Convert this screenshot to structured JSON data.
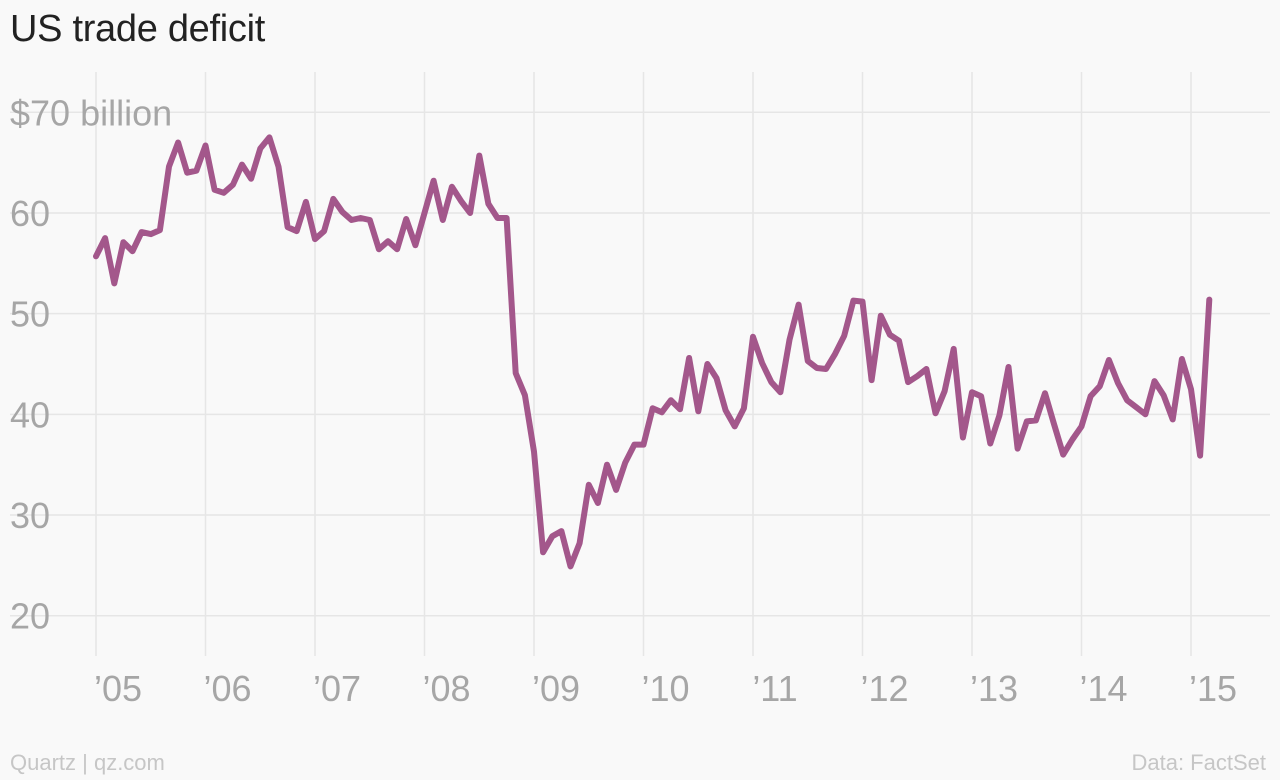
{
  "chart_data": {
    "type": "line",
    "title": "US trade deficit",
    "xlabel": "",
    "ylabel": "",
    "ylim": [
      16,
      74
    ],
    "xlim": [
      2004.91,
      2015.25
    ],
    "yticks": [
      {
        "value": 70,
        "label": "$70 billion"
      },
      {
        "value": 60,
        "label": "60"
      },
      {
        "value": 50,
        "label": "50"
      },
      {
        "value": 40,
        "label": "40"
      },
      {
        "value": 30,
        "label": "30"
      },
      {
        "value": 20,
        "label": "20"
      }
    ],
    "xticks": [
      {
        "value": 2005,
        "label": "’05"
      },
      {
        "value": 2006,
        "label": "’06"
      },
      {
        "value": 2007,
        "label": "’07"
      },
      {
        "value": 2008,
        "label": "’08"
      },
      {
        "value": 2009,
        "label": "’09"
      },
      {
        "value": 2010,
        "label": "’10"
      },
      {
        "value": 2011,
        "label": "’11"
      },
      {
        "value": 2012,
        "label": "’12"
      },
      {
        "value": 2013,
        "label": "’13"
      },
      {
        "value": 2014,
        "label": "’14"
      },
      {
        "value": 2015,
        "label": "’15"
      }
    ],
    "grid": true,
    "series": [
      {
        "color": "#a3578b",
        "start": "2005-01",
        "frequency": "monthly",
        "values": [
          55.7,
          57.5,
          53.0,
          57.1,
          56.2,
          58.1,
          57.9,
          58.3,
          64.6,
          67.0,
          64.0,
          64.2,
          66.7,
          62.3,
          62.0,
          62.8,
          64.8,
          63.4,
          66.4,
          67.5,
          64.6,
          58.6,
          58.2,
          61.1,
          57.4,
          58.2,
          61.4,
          60.1,
          59.3,
          59.5,
          59.3,
          56.4,
          57.2,
          56.4,
          59.4,
          56.8,
          60.0,
          63.2,
          59.3,
          62.6,
          61.2,
          60.0,
          65.7,
          60.9,
          59.5,
          59.5,
          44.1,
          41.9,
          36.3,
          26.3,
          27.9,
          28.4,
          24.9,
          27.2,
          33.0,
          31.2,
          35.0,
          32.5,
          35.2,
          37.0,
          37.0,
          40.6,
          40.2,
          41.4,
          40.5,
          45.6,
          40.3,
          45.0,
          43.6,
          40.4,
          38.8,
          40.6,
          47.7,
          45.1,
          43.2,
          42.2,
          47.4,
          50.9,
          45.3,
          44.6,
          44.5,
          46.0,
          47.8,
          51.3,
          51.2,
          43.4,
          49.8,
          47.9,
          47.3,
          43.2,
          43.8,
          44.5,
          40.1,
          42.3,
          46.5,
          37.7,
          42.2,
          41.8,
          37.1,
          39.9,
          44.7,
          36.6,
          39.3,
          39.4,
          42.1,
          39.0,
          36.0,
          37.5,
          38.8,
          41.8,
          42.8,
          45.4,
          43.1,
          41.4,
          40.7,
          40.0,
          43.3,
          41.9,
          39.5,
          45.5,
          42.5,
          35.9,
          51.4
        ]
      }
    ]
  },
  "footer": {
    "source_left": "Quartz | qz.com",
    "source_right": "Data: FactSet"
  }
}
